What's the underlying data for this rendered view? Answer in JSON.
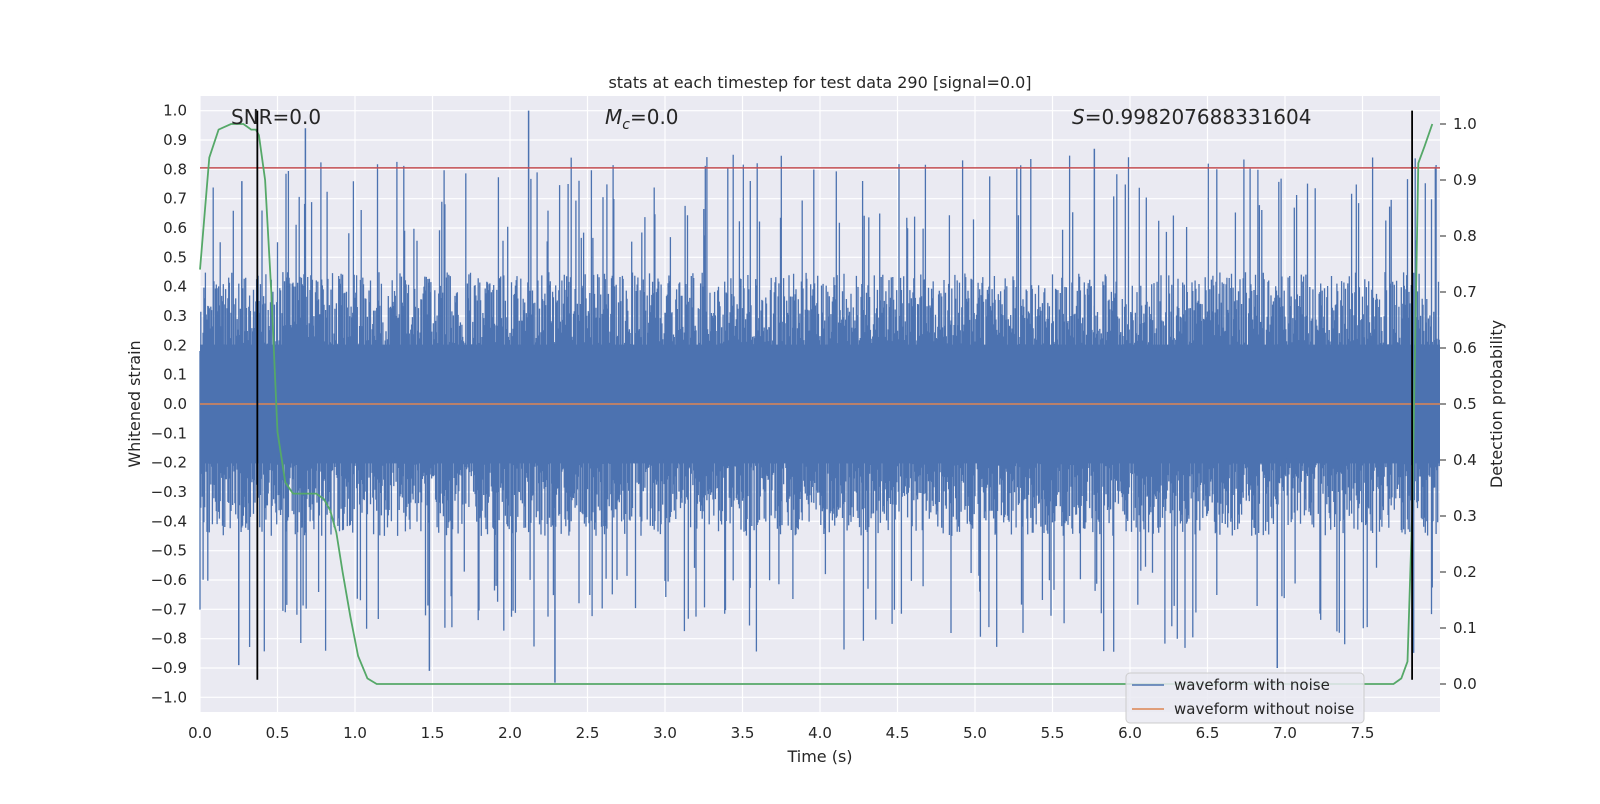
{
  "chart_data": {
    "type": "line",
    "title": "stats at each timestep for test data 290 [signal=0.0]",
    "xlabel": "Time (s)",
    "ylabel": "Whitened strain",
    "ylabel_right": "Detection probability",
    "xlim": [
      0.0,
      8.0
    ],
    "ylim": [
      -1.05,
      1.05
    ],
    "ylim_right": [
      -0.05,
      1.05
    ],
    "x_ticks": [
      "0.0",
      "0.5",
      "1.0",
      "1.5",
      "2.0",
      "2.5",
      "3.0",
      "3.5",
      "4.0",
      "4.5",
      "5.0",
      "5.5",
      "6.0",
      "6.5",
      "7.0",
      "7.5"
    ],
    "y_ticks": [
      "1.0",
      "0.9",
      "0.8",
      "0.7",
      "0.6",
      "0.5",
      "0.4",
      "0.3",
      "0.2",
      "0.1",
      "0.0",
      "-0.1",
      "-0.2",
      "-0.3",
      "-0.4",
      "-0.5",
      "-0.6",
      "-0.7",
      "-0.8",
      "-0.9",
      "-1.0"
    ],
    "y_ticks_right": [
      "1.0",
      "0.9",
      "0.8",
      "0.7",
      "0.6",
      "0.5",
      "0.4",
      "0.3",
      "0.2",
      "0.1",
      "0.0"
    ],
    "annotations": {
      "snr": "SNR=0.0",
      "mc_symbol": "M",
      "mc_sub": "c",
      "mc_value": "=0.0",
      "s_symbol": "S",
      "s_value": "=0.998207688331604"
    },
    "legend": {
      "position": "lower-right",
      "entries": [
        "waveform with noise",
        "waveform without noise"
      ]
    },
    "colors": {
      "noise": "#4c72b0",
      "clean": "#dd8452",
      "probability": "#55a868",
      "threshold": "#c44e52",
      "markers": "#000000",
      "axes_bg": "#eaeaf2",
      "grid": "#ffffff"
    },
    "series": [
      {
        "name": "waveform with noise",
        "axis": "left",
        "style": "dense-noise",
        "envelope_typical": [
          -0.45,
          0.45
        ],
        "extremes": [
          {
            "x": 0.25,
            "y": -0.89
          },
          {
            "x": 0.27,
            "y": 0.76
          },
          {
            "x": 0.68,
            "y": 0.94
          },
          {
            "x": 2.12,
            "y": 1.0
          },
          {
            "x": 2.29,
            "y": -0.95
          },
          {
            "x": 1.48,
            "y": -0.91
          },
          {
            "x": 6.95,
            "y": -0.9
          },
          {
            "x": 5.77,
            "y": 0.87
          }
        ]
      },
      {
        "name": "waveform without noise",
        "axis": "left",
        "x": [
          0.0,
          8.0
        ],
        "y": [
          0.0,
          0.0
        ]
      },
      {
        "name": "detection probability",
        "axis": "right",
        "x": [
          0.0,
          0.06,
          0.12,
          0.2,
          0.28,
          0.33,
          0.36,
          0.38,
          0.42,
          0.46,
          0.5,
          0.55,
          0.6,
          0.66,
          0.75,
          0.8,
          0.84,
          0.88,
          0.92,
          0.97,
          1.02,
          1.08,
          1.14,
          1.2,
          1.5,
          2.0,
          3.0,
          4.0,
          5.0,
          6.0,
          7.0,
          7.6,
          7.7,
          7.75,
          7.79,
          7.82,
          7.86,
          7.9,
          7.95
        ],
        "y": [
          0.74,
          0.94,
          0.99,
          1.0,
          1.0,
          0.99,
          0.99,
          0.98,
          0.9,
          0.7,
          0.45,
          0.36,
          0.34,
          0.34,
          0.34,
          0.33,
          0.31,
          0.27,
          0.2,
          0.12,
          0.05,
          0.01,
          0.0,
          0.0,
          0.0,
          0.0,
          0.0,
          0.0,
          0.0,
          0.0,
          0.0,
          0.0,
          0.0,
          0.01,
          0.04,
          0.3,
          0.93,
          0.96,
          1.0
        ]
      },
      {
        "name": "threshold",
        "axis": "left",
        "x": [
          0.0,
          8.0
        ],
        "y": [
          0.805,
          0.805
        ]
      },
      {
        "name": "detection markers",
        "axis": "left",
        "vlines": [
          0.37,
          7.82
        ],
        "y_range": [
          -0.94,
          1.0
        ]
      }
    ]
  }
}
